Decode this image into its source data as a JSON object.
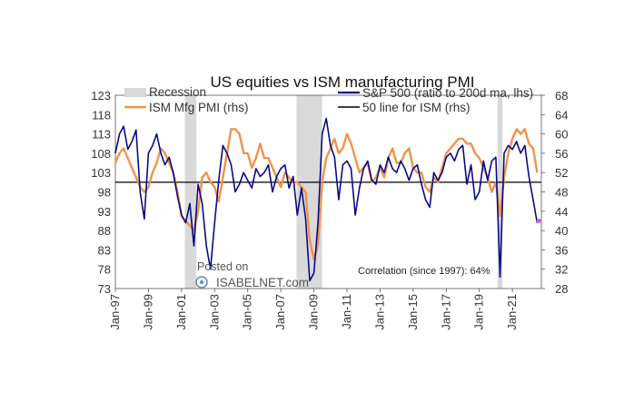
{
  "chart_data": {
    "type": "line",
    "title": "US equities vs ISM manufacturing PMI",
    "x_ticks": [
      "Jan-97",
      "Jan-99",
      "Jan-01",
      "Jan-03",
      "Jan-05",
      "Jan-07",
      "Jan-09",
      "Jan-11",
      "Jan-13",
      "Jan-15",
      "Jan-17",
      "Jan-19",
      "Jan-21"
    ],
    "x_range": [
      1997.0,
      2022.75
    ],
    "y_left": {
      "range": [
        73,
        123
      ],
      "ticks": [
        "123",
        "118",
        "113",
        "108",
        "103",
        "98",
        "93",
        "88",
        "83",
        "78",
        "73"
      ]
    },
    "y_right": {
      "range": [
        28,
        68
      ],
      "ticks": [
        "68",
        "64",
        "60",
        "56",
        "52",
        "48",
        "44",
        "40",
        "36",
        "32",
        "28"
      ]
    },
    "recessions": [
      {
        "name": "2001 recession",
        "start": 2001.2,
        "end": 2001.9
      },
      {
        "name": "2008 recession",
        "start": 2007.95,
        "end": 2009.5
      },
      {
        "name": "2020 recession",
        "start": 2020.1,
        "end": 2020.4
      }
    ],
    "legend": {
      "recession": "Recession",
      "ism": "ISM Mfg PMI (rhs)",
      "sp500": "S&P 500 (ratio to 200d ma, lhs)",
      "line50": "50 line for ISM (rhs)"
    },
    "reference_line_value": 50,
    "annotation": "Correlation (since 1997): 64%",
    "watermark": {
      "line1": "Posted on",
      "line2": "ISABELNET.com"
    },
    "colors": {
      "sp500": "#0a0a84",
      "ism": "#f0934a",
      "recession": "#d9d9d9",
      "line50": "#000000",
      "last_point": "#cc66dd"
    },
    "last_point": {
      "x": 2022.6,
      "value": 42
    },
    "series": [
      {
        "name": "ISM Mfg PMI (rhs)",
        "axis": "right",
        "x": [
          1997.0,
          1997.25,
          1997.5,
          1997.75,
          1998.0,
          1998.25,
          1998.5,
          1998.75,
          1999.0,
          1999.25,
          1999.5,
          1999.75,
          2000.0,
          2000.25,
          2000.5,
          2000.75,
          2001.0,
          2001.25,
          2001.5,
          2001.75,
          2002.0,
          2002.25,
          2002.5,
          2002.75,
          2003.0,
          2003.25,
          2003.5,
          2003.75,
          2004.0,
          2004.25,
          2004.5,
          2004.75,
          2005.0,
          2005.25,
          2005.5,
          2005.75,
          2006.0,
          2006.25,
          2006.5,
          2006.75,
          2007.0,
          2007.25,
          2007.5,
          2007.75,
          2008.0,
          2008.25,
          2008.5,
          2008.75,
          2009.0,
          2009.25,
          2009.5,
          2009.75,
          2010.0,
          2010.25,
          2010.5,
          2010.75,
          2011.0,
          2011.25,
          2011.5,
          2011.75,
          2012.0,
          2012.25,
          2012.5,
          2012.75,
          2013.0,
          2013.25,
          2013.5,
          2013.75,
          2014.0,
          2014.25,
          2014.5,
          2014.75,
          2015.0,
          2015.25,
          2015.5,
          2015.75,
          2016.0,
          2016.25,
          2016.5,
          2016.75,
          2017.0,
          2017.25,
          2017.5,
          2017.75,
          2018.0,
          2018.25,
          2018.5,
          2018.75,
          2019.0,
          2019.25,
          2019.5,
          2019.75,
          2020.0,
          2020.25,
          2020.5,
          2020.75,
          2021.0,
          2021.25,
          2021.5,
          2021.75,
          2022.0,
          2022.25,
          2022.5
        ],
        "values": [
          54,
          56,
          57,
          55,
          53,
          51,
          49,
          48,
          49,
          52,
          54,
          57,
          56,
          54,
          52,
          48,
          43,
          42,
          41,
          40,
          44,
          51,
          52,
          50,
          49,
          46,
          51,
          56,
          61,
          61,
          60,
          56,
          56,
          53,
          55,
          58,
          55,
          55,
          53,
          51,
          49,
          52,
          51,
          50,
          50,
          49,
          48,
          38,
          34,
          37,
          50,
          55,
          57,
          59,
          56,
          57,
          60,
          58,
          55,
          52,
          53,
          54,
          50,
          51,
          53,
          51,
          55,
          57,
          54,
          54,
          56,
          57,
          53,
          52,
          52,
          49,
          48,
          51,
          50,
          53,
          56,
          57,
          58,
          59,
          59,
          58,
          58,
          56,
          55,
          53,
          51,
          48,
          50,
          43,
          51,
          56,
          59,
          61,
          60,
          61,
          58,
          57,
          52
        ]
      },
      {
        "name": "S&P 500 (ratio to 200d ma, lhs)",
        "axis": "left",
        "x": [
          1997.0,
          1997.25,
          1997.5,
          1997.75,
          1998.0,
          1998.25,
          1998.5,
          1998.75,
          1999.0,
          1999.25,
          1999.5,
          1999.75,
          2000.0,
          2000.25,
          2000.5,
          2000.75,
          2001.0,
          2001.25,
          2001.5,
          2001.75,
          2002.0,
          2002.25,
          2002.5,
          2002.75,
          2003.0,
          2003.25,
          2003.5,
          2003.75,
          2004.0,
          2004.25,
          2004.5,
          2004.75,
          2005.0,
          2005.25,
          2005.5,
          2005.75,
          2006.0,
          2006.25,
          2006.5,
          2006.75,
          2007.0,
          2007.25,
          2007.5,
          2007.75,
          2008.0,
          2008.25,
          2008.5,
          2008.75,
          2009.0,
          2009.25,
          2009.5,
          2009.75,
          2010.0,
          2010.25,
          2010.5,
          2010.75,
          2011.0,
          2011.25,
          2011.5,
          2011.75,
          2012.0,
          2012.25,
          2012.5,
          2012.75,
          2013.0,
          2013.25,
          2013.5,
          2013.75,
          2014.0,
          2014.25,
          2014.5,
          2014.75,
          2015.0,
          2015.25,
          2015.5,
          2015.75,
          2016.0,
          2016.25,
          2016.5,
          2016.75,
          2017.0,
          2017.25,
          2017.5,
          2017.75,
          2018.0,
          2018.25,
          2018.5,
          2018.75,
          2019.0,
          2019.25,
          2019.5,
          2019.75,
          2020.0,
          2020.25,
          2020.5,
          2020.75,
          2021.0,
          2021.25,
          2021.5,
          2021.75,
          2022.0,
          2022.25,
          2022.5
        ],
        "values": [
          108,
          113,
          115,
          109,
          111,
          114,
          98,
          91,
          108,
          110,
          113,
          108,
          105,
          107,
          103,
          97,
          92,
          90,
          95,
          84,
          100,
          95,
          84,
          78,
          90,
          101,
          110,
          108,
          105,
          98,
          100,
          103,
          101,
          99,
          104,
          102,
          103,
          105,
          98,
          102,
          104,
          105,
          99,
          102,
          92,
          99,
          91,
          75,
          77,
          90,
          113,
          117,
          110,
          107,
          96,
          105,
          106,
          104,
          92,
          99,
          104,
          106,
          101,
          100,
          105,
          103,
          107,
          104,
          103,
          106,
          104,
          101,
          104,
          105,
          100,
          96,
          94,
          103,
          101,
          103,
          107,
          108,
          106,
          109,
          110,
          100,
          105,
          96,
          98,
          106,
          101,
          106,
          107,
          76,
          108,
          110,
          109,
          111,
          108,
          110,
          102,
          96,
          90
        ]
      }
    ]
  }
}
